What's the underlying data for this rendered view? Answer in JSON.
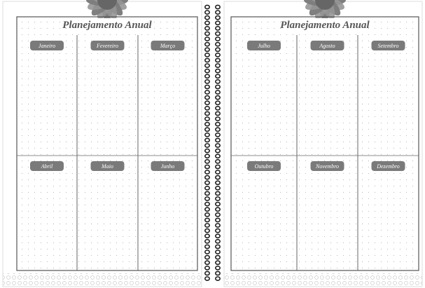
{
  "pages": [
    {
      "title": "Planejamento Anual",
      "months": [
        "Janeiro",
        "Fevereiro",
        "Março",
        "Abril",
        "Maio",
        "Junho"
      ]
    },
    {
      "title": "Planejamento Anual",
      "months": [
        "Julho",
        "Agosto",
        "Setembro",
        "Outubro",
        "Novembro",
        "Dezembro"
      ]
    }
  ]
}
